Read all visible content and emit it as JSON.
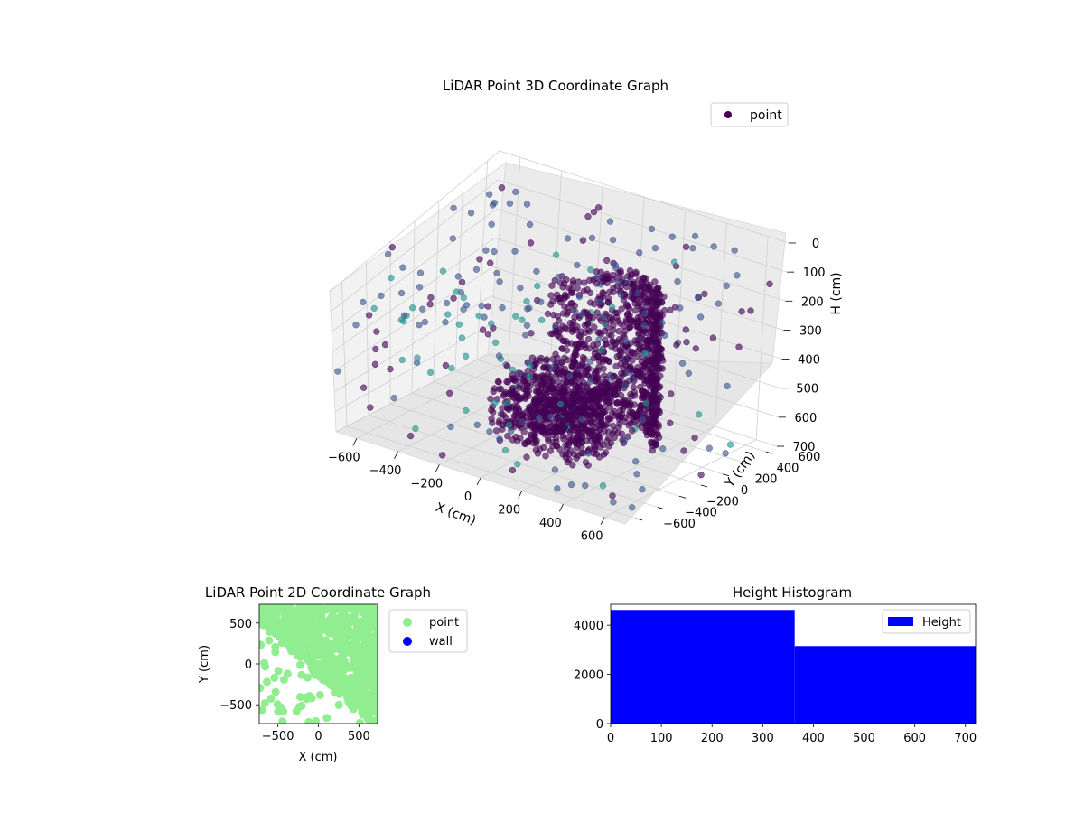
{
  "colors": {
    "point_2d": "#90ee90",
    "wall_2d": "#0000ff",
    "histogram": "#0000ff",
    "colormap": [
      "#440154",
      "#3b528b",
      "#21918c",
      "#5ec962",
      "#fde725"
    ]
  },
  "chart_data": [
    {
      "type": "scatter",
      "projection": "3d",
      "title": "LiDAR Point 3D Coordinate Graph",
      "xlabel": "X (cm)",
      "ylabel": "Y (cm)",
      "zlabel": "H (cm)",
      "xlim": [
        -700,
        700
      ],
      "ylim": [
        -700,
        700
      ],
      "zlim": [
        0,
        700
      ],
      "z_inverted": true,
      "xticks": [
        "−600",
        "−400",
        "−200",
        "0",
        "200",
        "400",
        "600"
      ],
      "yticks": [
        "−600",
        "−400",
        "−200",
        "0",
        "200",
        "400",
        "600"
      ],
      "zticks": [
        "0",
        "100",
        "200",
        "300",
        "400",
        "500",
        "600",
        "700"
      ],
      "legend": {
        "position": "upper-right",
        "entries": [
          "point"
        ]
      },
      "colormap": "viridis",
      "grid": true
    },
    {
      "type": "scatter",
      "title": "LiDAR Point 2D Coordinate Graph",
      "xlabel": "X (cm)",
      "ylabel": "Y (cm)",
      "xlim": [
        -730,
        730
      ],
      "ylim": [
        -730,
        730
      ],
      "xticks": [
        "−500",
        "0",
        "500"
      ],
      "yticks": [
        "−500",
        "0",
        "500"
      ],
      "legend": {
        "position": "outside-right",
        "entries": [
          "point",
          "wall"
        ]
      },
      "series": [
        {
          "name": "point",
          "color": "#90ee90"
        },
        {
          "name": "wall",
          "color": "#0000ff",
          "values": []
        }
      ]
    },
    {
      "type": "bar",
      "subtype": "histogram",
      "title": "Height Histogram",
      "xlim": [
        0,
        720
      ],
      "ylim": [
        0,
        4850
      ],
      "xticks": [
        "0",
        "100",
        "200",
        "300",
        "400",
        "500",
        "600",
        "700"
      ],
      "yticks": [
        "0",
        "2000",
        "4000"
      ],
      "bins": [
        {
          "from": 0,
          "to": 363,
          "count": 4620
        },
        {
          "from": 363,
          "to": 720,
          "count": 3150
        }
      ],
      "legend": {
        "position": "upper-right",
        "entries": [
          "Height"
        ]
      },
      "series": [
        {
          "name": "Height",
          "color": "#0000ff"
        }
      ]
    }
  ]
}
